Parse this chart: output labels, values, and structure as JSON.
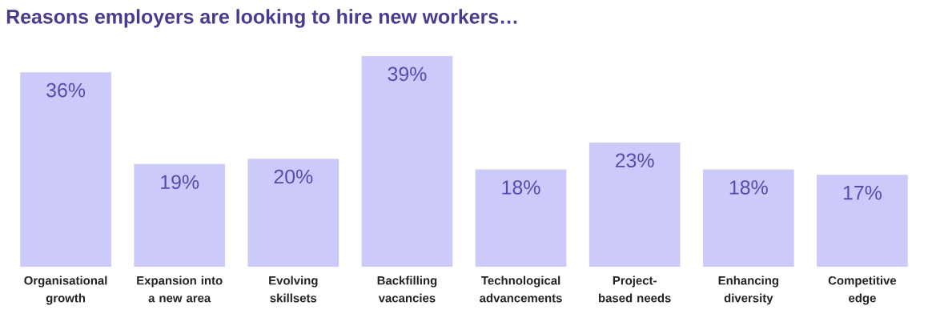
{
  "chart_data": {
    "type": "bar",
    "title": "Reasons employers are looking to hire new workers…",
    "categories": [
      "Organisational growth",
      "Expansion into a new area",
      "Evolving skillsets",
      "Backfilling vacancies",
      "Technological advancements",
      "Project-based needs",
      "Enhancing diversity",
      "Competitive edge"
    ],
    "values": [
      36,
      19,
      20,
      39,
      18,
      23,
      18,
      17
    ],
    "value_labels": [
      "36%",
      "19%",
      "20%",
      "39%",
      "18%",
      "23%",
      "18%",
      "17%"
    ],
    "color": "#ccc9fb"
  }
}
